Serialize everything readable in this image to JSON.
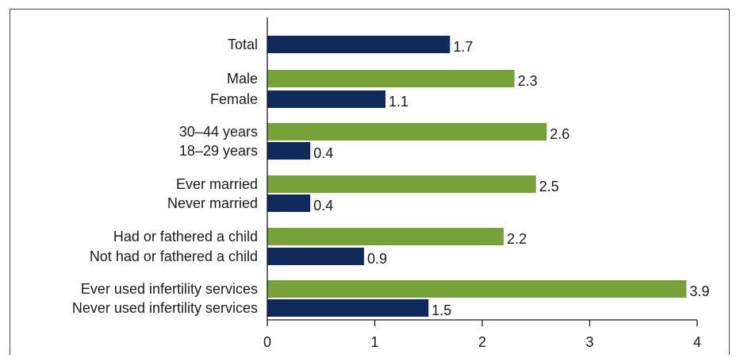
{
  "chart_data": {
    "type": "bar",
    "orientation": "horizontal",
    "title": "",
    "xlabel": "",
    "ylabel": "",
    "xlim": [
      0,
      4
    ],
    "xticks": [
      "0",
      "1",
      "2",
      "3",
      "4"
    ],
    "grid": false,
    "colors": {
      "green": "#77a23a",
      "navy": "#0f2a5b"
    },
    "bars": [
      {
        "label": "Total",
        "value": 1.7,
        "value_label": "1.7",
        "color": "navy"
      },
      {
        "label": "Male",
        "value": 2.3,
        "value_label": "2.3",
        "color": "green"
      },
      {
        "label": "Female",
        "value": 1.1,
        "value_label": "1.1",
        "color": "navy"
      },
      {
        "label": "30–44 years",
        "value": 2.6,
        "value_label": "2.6",
        "color": "green"
      },
      {
        "label": "18–29 years",
        "value": 0.4,
        "value_label": "0.4",
        "color": "navy"
      },
      {
        "label": "Ever married",
        "value": 2.5,
        "value_label": "2.5",
        "color": "green"
      },
      {
        "label": "Never married",
        "value": 0.4,
        "value_label": "0.4",
        "color": "navy"
      },
      {
        "label": "Had or fathered a child",
        "value": 2.2,
        "value_label": "2.2",
        "color": "green"
      },
      {
        "label": "Not had or fathered a child",
        "value": 0.9,
        "value_label": "0.9",
        "color": "navy"
      },
      {
        "label": "Ever used infertility services",
        "value": 3.9,
        "value_label": "3.9",
        "color": "green"
      },
      {
        "label": "Never used infertility services",
        "value": 1.5,
        "value_label": "1.5",
        "color": "navy"
      }
    ]
  }
}
